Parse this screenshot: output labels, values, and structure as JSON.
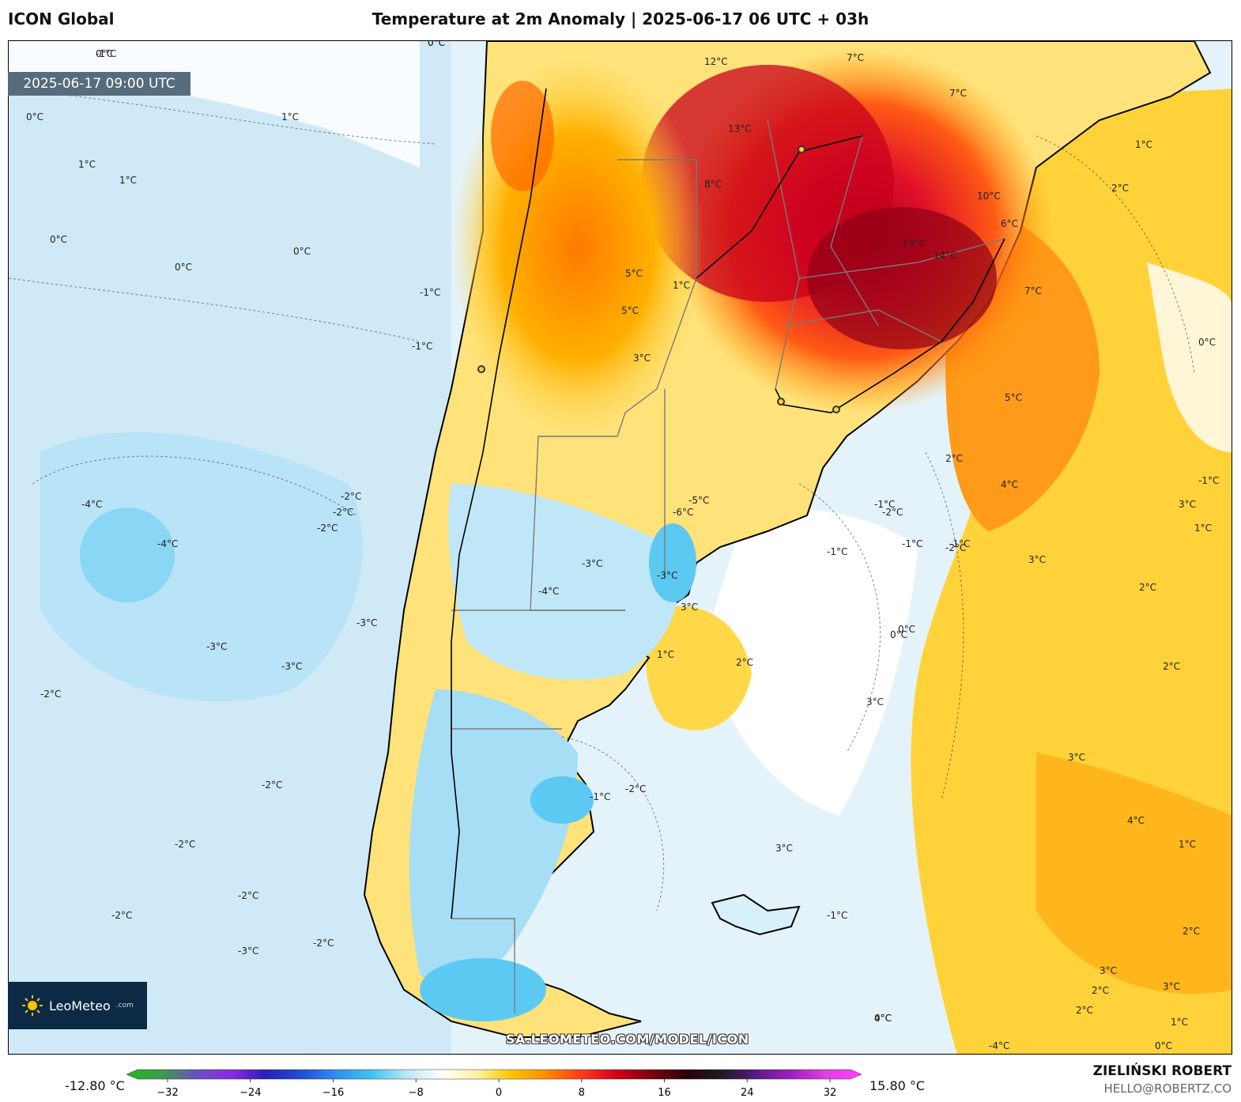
{
  "header": {
    "model": "ICON Global",
    "title": "Temperature at 2m Anomaly | 2025-06-17 06 UTC + 03h"
  },
  "valid_time": "2025-06-17 09:00 UTC",
  "logo": {
    "name": "LeoMeteo",
    "suffix": ".com"
  },
  "watermark": "SA.LEOMETEO.COM/MODEL/ICON",
  "colorbar": {
    "min_label": "-12.80 °C",
    "max_label": "15.80 °C",
    "ticks": [
      "−32",
      "−24",
      "−16",
      "−8",
      "0",
      "8",
      "16",
      "24",
      "32"
    ],
    "stops": [
      "#22b822",
      "#3b9c4a",
      "#6a4fc1",
      "#8a2be2",
      "#2a1fb8",
      "#1e4fd8",
      "#2f8ff0",
      "#3cc5f0",
      "#b9e6f5",
      "#ffffff",
      "#fff3a0",
      "#ffc400",
      "#ff8a00",
      "#ff3b1a",
      "#d4001a",
      "#7a0010",
      "#2a0008",
      "#1c1c1c",
      "#5a1a8a",
      "#a020c0",
      "#e040e0",
      "#ff40ff"
    ]
  },
  "credits": {
    "author": "ZIELIŃSKI ROBERT",
    "email": "HELLO@ROBERTZ.CO"
  },
  "contour_labels": [
    "0°C",
    "0°C",
    "1°C",
    "1°C",
    "1°C",
    "0°C",
    "0°C",
    "0°C",
    "0°C",
    "-1°C",
    "-1°C",
    "-4°C",
    "-4°C",
    "-2°C",
    "-2°C",
    "-2°C",
    "-3°C",
    "-3°C",
    "-3°C",
    "-2°C",
    "-2°C",
    "-2°C",
    "-2°C",
    "-3°C",
    "-2°C",
    "-2°C",
    "12°C",
    "13°C",
    "8°C",
    "7°C",
    "7°C",
    "13°C",
    "14°C",
    "10°C",
    "6°C",
    "7°C",
    "5°C",
    "5°C",
    "1°C",
    "3°C",
    "5°C",
    "2°C",
    "2°C",
    "4°C",
    "3°C",
    "2°C",
    "3°C",
    "2°C",
    "1°C",
    "0°C",
    "-1°C",
    "1°C",
    "-5°C",
    "-6°C",
    "-3°C",
    "-4°C",
    "-3°C",
    "-1°C",
    "0°C",
    "-2°C",
    "-1°C",
    "0°C",
    "-1°C",
    "3°C",
    "2°C",
    "1°C",
    "-1°C",
    "-2°C",
    "-2°C",
    "-1°C",
    "3°C",
    "3°C",
    "4°C",
    "3°C",
    "2°C",
    "3°C",
    "-4°C",
    "-1°C",
    "0°C",
    "2°C",
    "2°C",
    "1°C",
    "0°C",
    "3°C",
    "4°C",
    "1°C",
    "0°C",
    "-1°C"
  ]
}
